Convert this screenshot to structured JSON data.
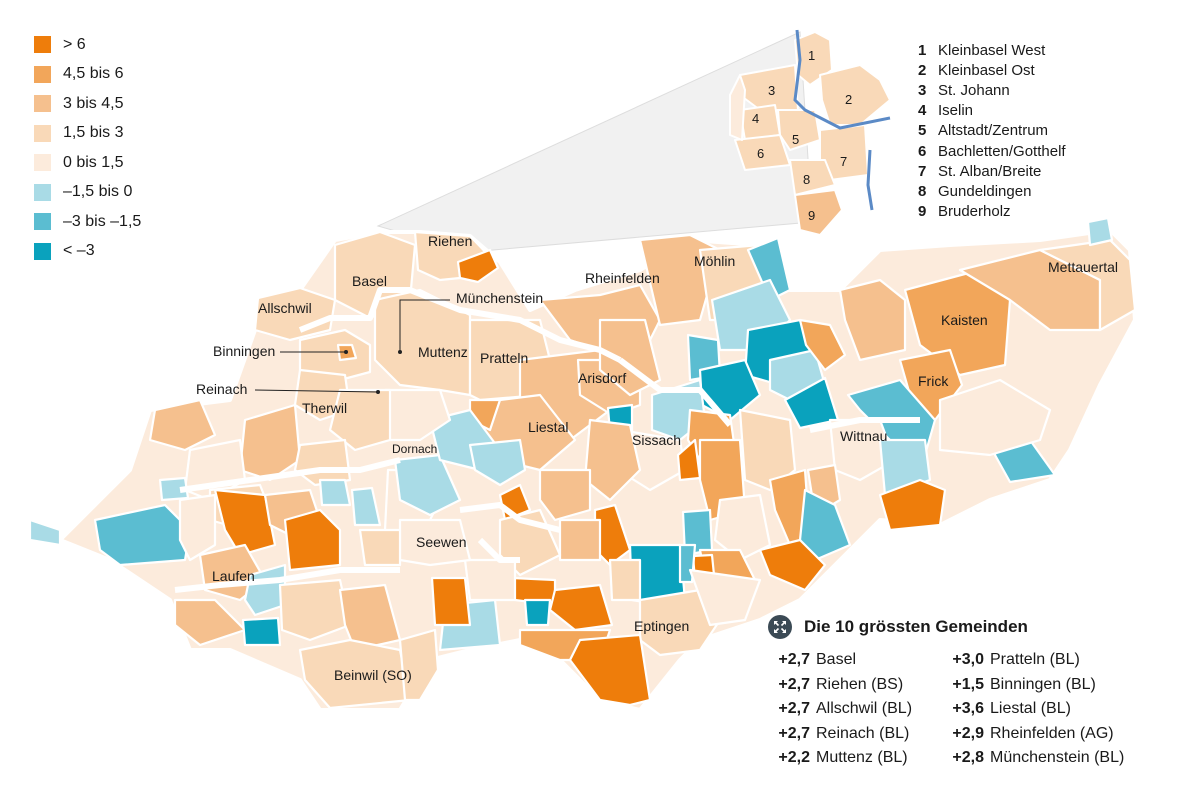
{
  "legend": {
    "items": [
      {
        "label": "> 6",
        "color": "#ee7d0b"
      },
      {
        "label": "4,5 bis 6",
        "color": "#f2a65a"
      },
      {
        "label": "3 bis 4,5",
        "color": "#f5c08e"
      },
      {
        "label": "1,5 bis 3",
        "color": "#f9d9b8"
      },
      {
        "label": "0 bis 1,5",
        "color": "#fcebdc"
      },
      {
        "label": "–1,5 bis 0",
        "color": "#a9dbe6"
      },
      {
        "label": "–3 bis –1,5",
        "color": "#5bbdd1"
      },
      {
        "label": "< –3",
        "color": "#0aa2bd"
      }
    ]
  },
  "districts": {
    "items": [
      {
        "num": "1",
        "name": "Kleinbasel West"
      },
      {
        "num": "2",
        "name": "Kleinbasel Ost"
      },
      {
        "num": "3",
        "name": "St. Johann"
      },
      {
        "num": "4",
        "name": "Iselin"
      },
      {
        "num": "5",
        "name": "Altstadt/Zentrum"
      },
      {
        "num": "6",
        "name": "Bachletten/Gotthelf"
      },
      {
        "num": "7",
        "name": "St. Alban/Breite"
      },
      {
        "num": "8",
        "name": "Gundeldingen"
      },
      {
        "num": "9",
        "name": "Bruderholz"
      }
    ]
  },
  "map": {
    "labels": {
      "riehen": "Riehen",
      "basel": "Basel",
      "allschwil": "Allschwil",
      "muenchenstein": "Münchenstein",
      "binningen": "Binningen",
      "muttenz": "Muttenz",
      "pratteln": "Pratteln",
      "reinach": "Reinach",
      "therwil": "Therwil",
      "rheinfelden": "Rheinfelden",
      "moehlin": "Möhlin",
      "mettauertal": "Mettauertal",
      "kaisten": "Kaisten",
      "frick": "Frick",
      "arisdorf": "Arisdorf",
      "liestal": "Liestal",
      "sissach": "Sissach",
      "wittnau": "Wittnau",
      "dornach": "Dornach",
      "seewen": "Seewen",
      "laufen": "Laufen",
      "beinwil": "Beinwil (SO)",
      "eptingen": "Eptingen"
    }
  },
  "top10": {
    "title": "Die 10 grössten Gemeinden",
    "icon": "expand-arrows-icon",
    "rows": [
      {
        "v1": "+2,7",
        "n1": "Basel",
        "v2": "+3,0",
        "n2": "Pratteln (BL)"
      },
      {
        "v1": "+2,7",
        "n1": "Riehen (BS)",
        "v2": "+1,5",
        "n2": "Binningen (BL)"
      },
      {
        "v1": "+2,7",
        "n1": "Allschwil (BL)",
        "v2": "+3,6",
        "n2": "Liestal (BL)"
      },
      {
        "v1": "+2,7",
        "n1": "Reinach (BL)",
        "v2": "+2,9",
        "n2": "Rheinfelden (AG)"
      },
      {
        "v1": "+2,2",
        "n1": "Muttenz (BL)",
        "v2": "+2,8",
        "n2": "Münchenstein (BL)"
      }
    ]
  }
}
